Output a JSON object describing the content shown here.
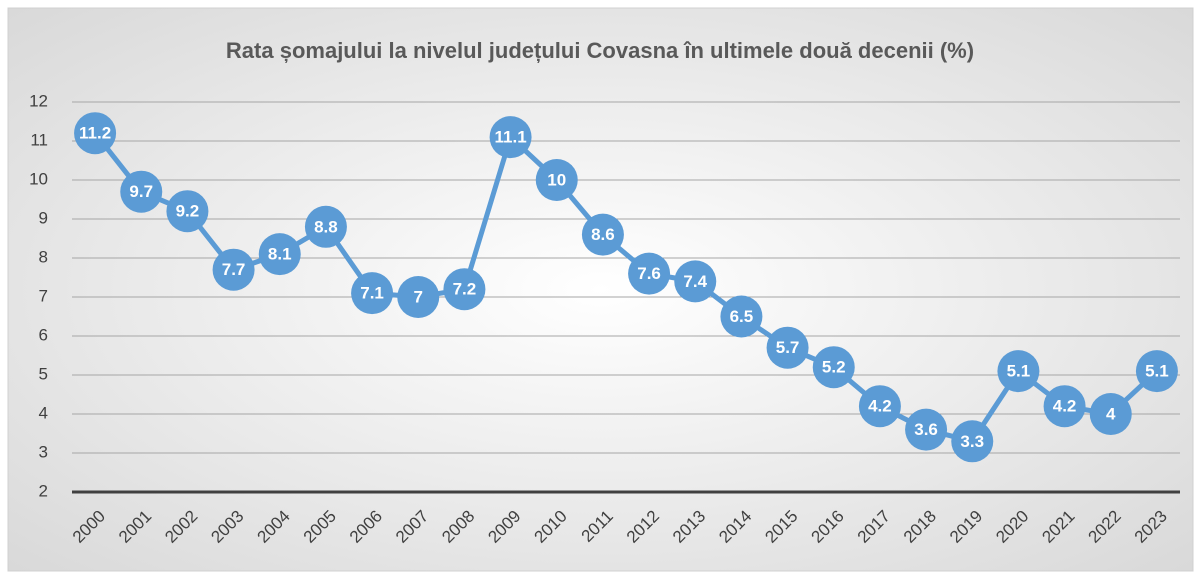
{
  "chart_data": {
    "type": "line",
    "title": "Rata șomajului la nivelul județului Covasna în ultimele două decenii (%)",
    "categories": [
      "2000",
      "2001",
      "2002",
      "2003",
      "2004",
      "2005",
      "2006",
      "2007",
      "2008",
      "2009",
      "2010",
      "2011",
      "2012",
      "2013",
      "2014",
      "2015",
      "2016",
      "2017",
      "2018",
      "2019",
      "2020",
      "2021",
      "2022",
      "2023"
    ],
    "series": [
      {
        "name": "Rata șomajului",
        "color": "#5b9bd5",
        "values": [
          11.2,
          9.7,
          9.2,
          7.7,
          8.1,
          8.8,
          7.1,
          7,
          7.2,
          11.1,
          10,
          8.6,
          7.6,
          7.4,
          6.5,
          5.7,
          5.2,
          4.2,
          3.6,
          3.3,
          5.1,
          4.2,
          4,
          5.1
        ]
      }
    ],
    "ylim": [
      2,
      12
    ],
    "yticks": [
      2,
      3,
      4,
      5,
      6,
      7,
      8,
      9,
      10,
      11,
      12
    ],
    "grid": true
  }
}
